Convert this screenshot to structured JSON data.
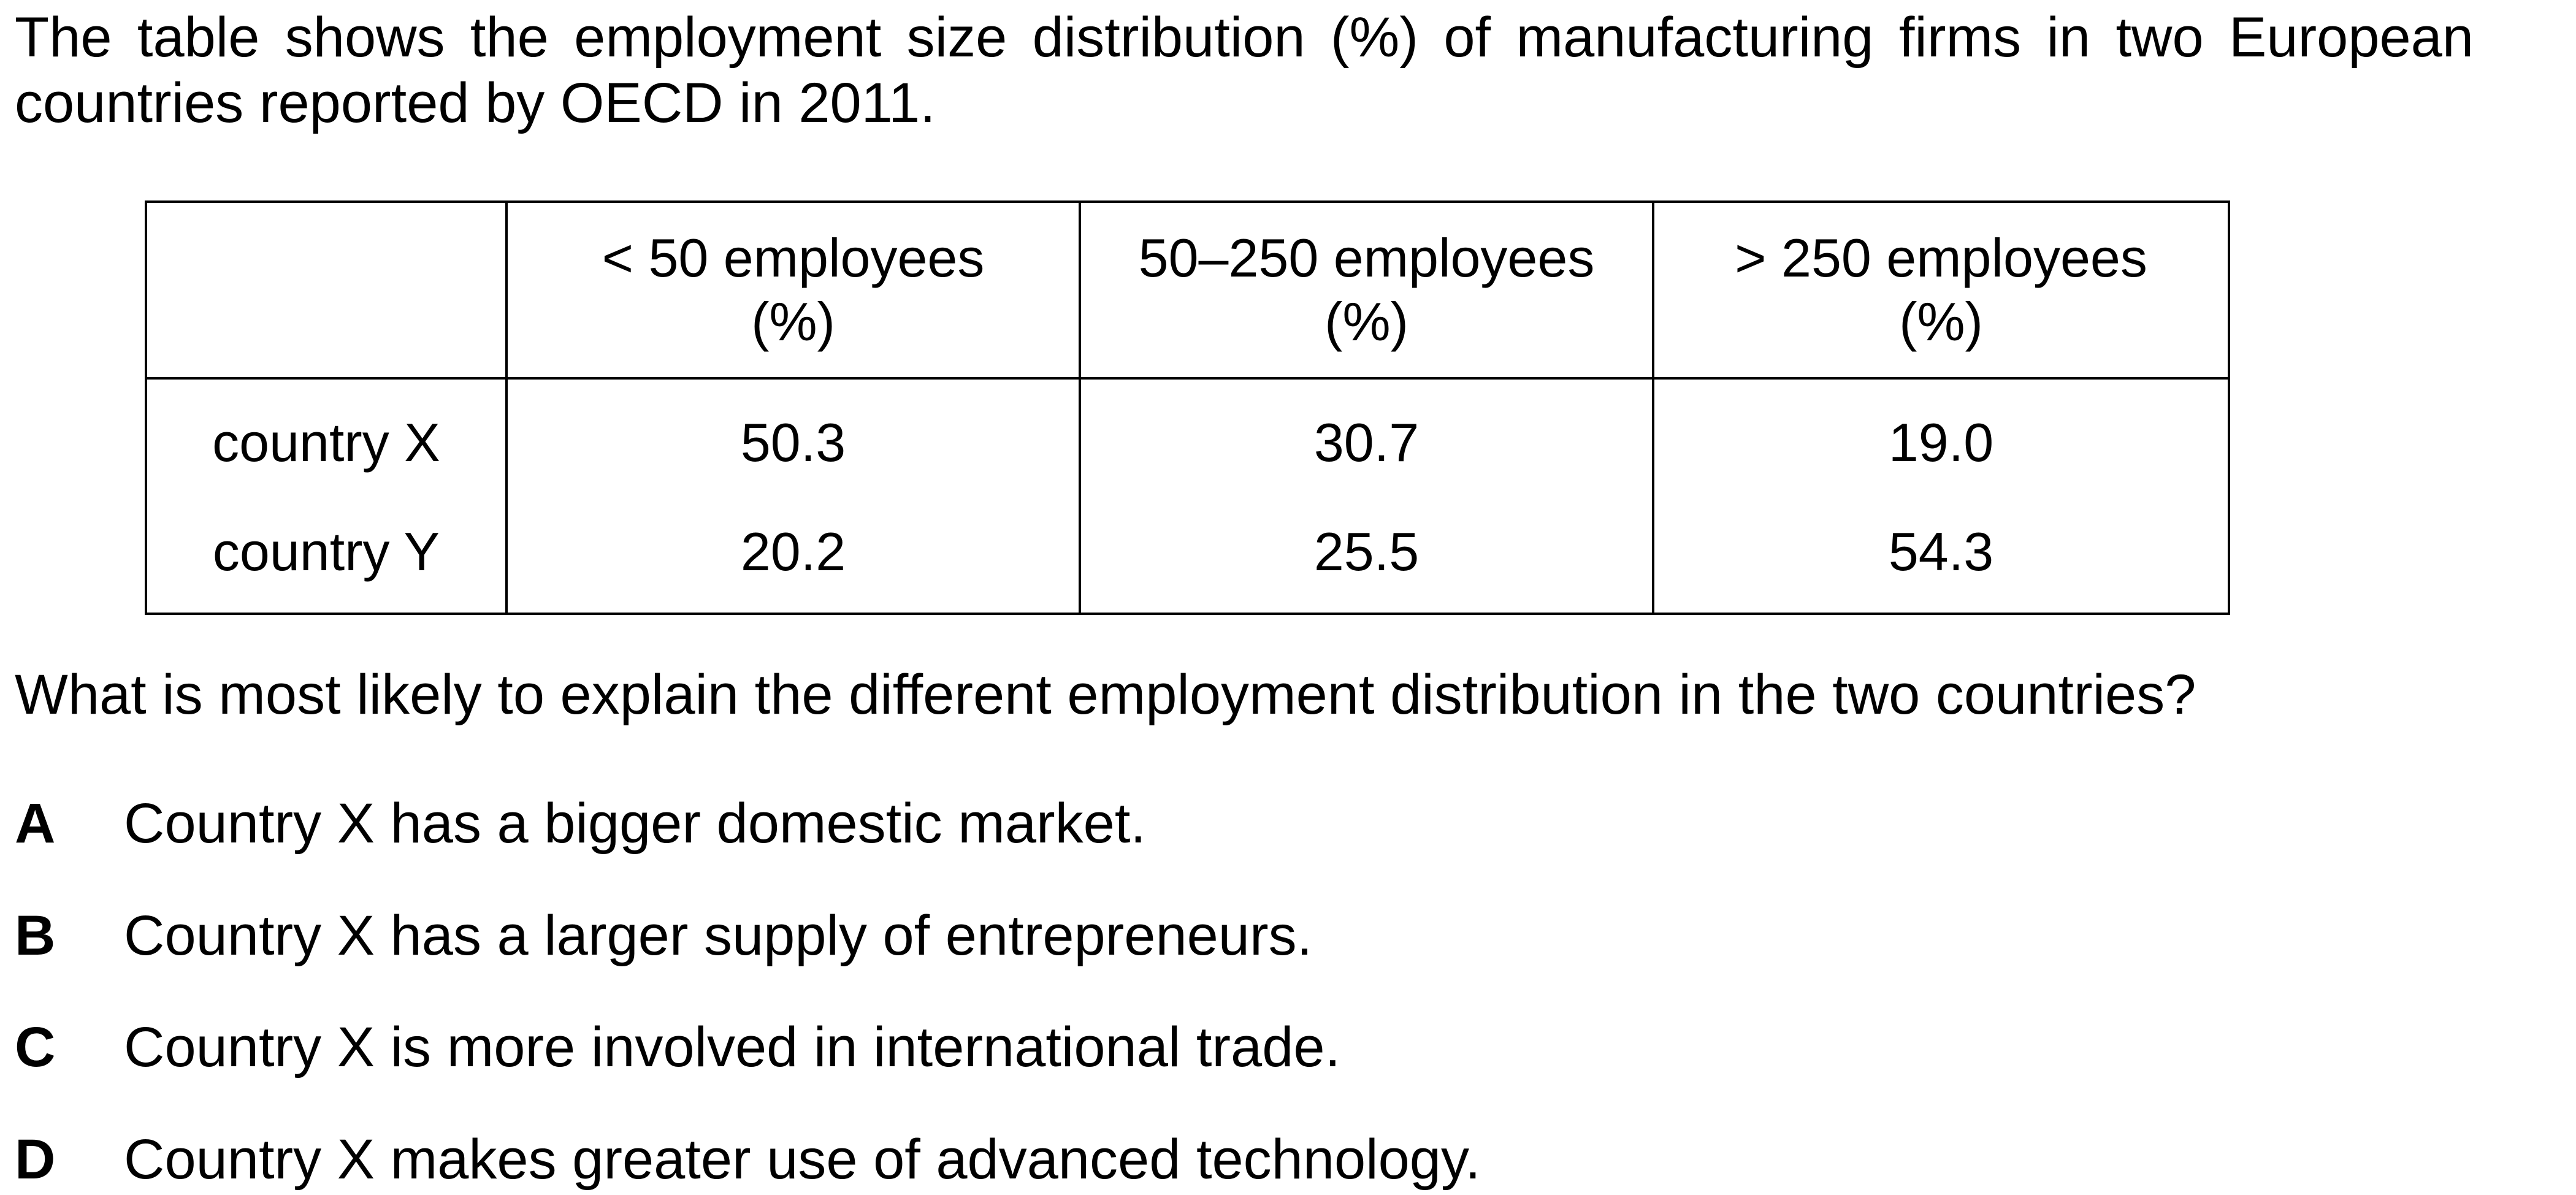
{
  "intro": "The table shows the employment size distribution (%) of manufacturing firms in two European countries reported by OECD in 2011.",
  "table": {
    "headers": [
      {
        "line1": "",
        "line2": ""
      },
      {
        "line1": "< 50 employees",
        "line2": "(%)"
      },
      {
        "line1": "50–250 employees",
        "line2": "(%)"
      },
      {
        "line1": "> 250 employees",
        "line2": "(%)"
      }
    ],
    "rows": [
      {
        "label": "country X",
        "values": [
          "50.3",
          "30.7",
          "19.0"
        ]
      },
      {
        "label": "country Y",
        "values": [
          "20.2",
          "25.5",
          "54.3"
        ]
      }
    ]
  },
  "question": "What is most likely to explain the different employment distribution in the two countries?",
  "options": [
    {
      "letter": "A",
      "text": "Country X has a bigger domestic market."
    },
    {
      "letter": "B",
      "text": "Country X has a larger supply of entrepreneurs."
    },
    {
      "letter": "C",
      "text": "Country X is more involved in international trade."
    },
    {
      "letter": "D",
      "text": "Country X makes greater use of advanced technology."
    }
  ]
}
